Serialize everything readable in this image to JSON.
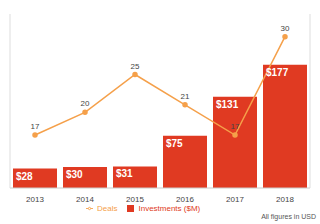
{
  "chart_data": {
    "type": "bar",
    "categories": [
      "2013",
      "2014",
      "2015",
      "2016",
      "2017",
      "2018"
    ],
    "series": [
      {
        "name": "Investments ($M)",
        "type": "bar",
        "color": "#e03a22",
        "values": [
          28,
          30,
          31,
          75,
          131,
          177
        ],
        "value_labels": [
          "$28",
          "$30",
          "$31",
          "$75",
          "$131",
          "$177"
        ]
      },
      {
        "name": "Deals",
        "type": "line",
        "axis": "y2",
        "color": "#f5a04a",
        "marker": "circle",
        "values": [
          17,
          20,
          25,
          21,
          17,
          30
        ]
      }
    ],
    "ylim": [
      0,
      250
    ],
    "y2lim": [
      10,
      33
    ],
    "data_labels": true,
    "tick_labels": "x",
    "grid": false,
    "legend": "bottom",
    "annotation": "All figures in USD"
  }
}
